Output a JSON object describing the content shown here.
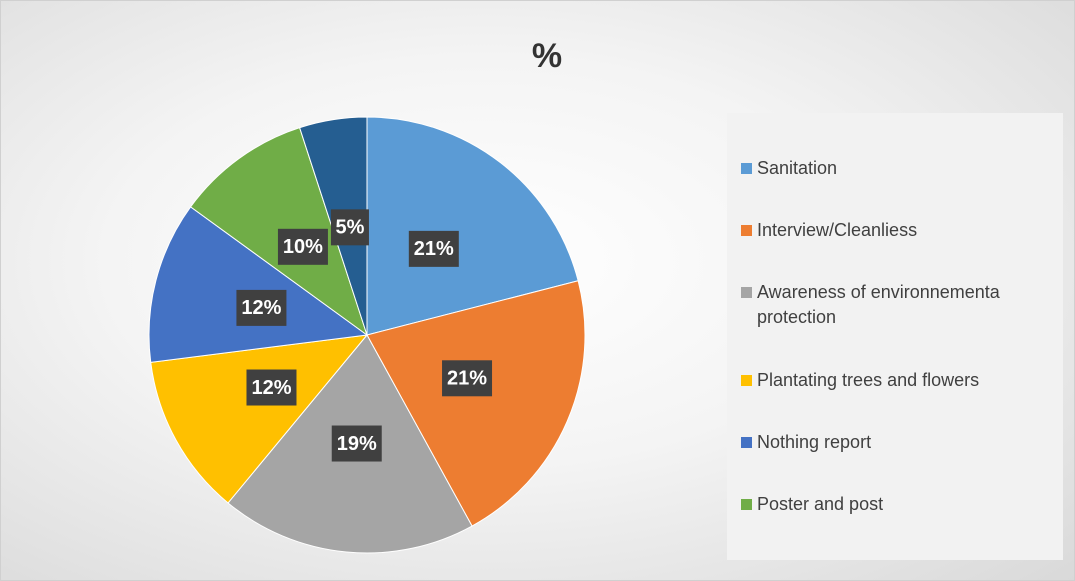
{
  "chart_data": {
    "type": "pie",
    "title": "%",
    "categories": [
      "Sanitation",
      "Interview/Cleanliess",
      "Awareness of environnementa protection",
      "Plantating trees and flowers",
      "Nothing report",
      "Poster and post",
      null
    ],
    "values": [
      21,
      21,
      19,
      12,
      12,
      10,
      5
    ],
    "value_labels": [
      "21%",
      "21%",
      "19%",
      "12%",
      "12%",
      "10%",
      "5%"
    ],
    "colors": [
      "#5b9bd5",
      "#ed7d31",
      "#a5a5a5",
      "#ffc000",
      "#4472c4",
      "#70ad47",
      "#255e91"
    ],
    "legend": "right"
  }
}
